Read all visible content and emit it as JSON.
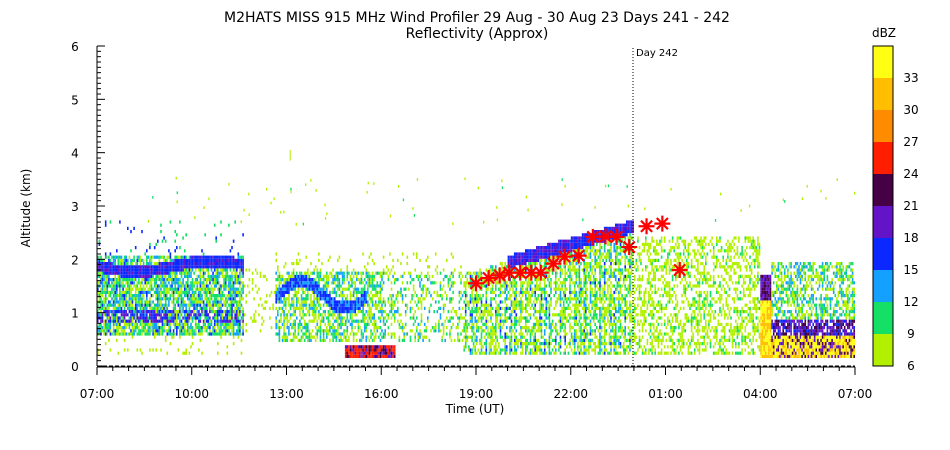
{
  "chart_data": {
    "type": "heatmap",
    "title": "M2HATS MISS 915 MHz Wind Profiler  29 Aug - 30 Aug 23 Days 241 - 242",
    "subtitle": "Reflectivity (Approx)",
    "xlabel": "Time (UT)",
    "ylabel": "Altitude (km)",
    "x_tick_labels": [
      "07:00",
      "10:00",
      "13:00",
      "16:00",
      "19:00",
      "22:00",
      "01:00",
      "04:00",
      "07:00"
    ],
    "x_ticks_hours": [
      0,
      3,
      6,
      9,
      12,
      15,
      18,
      21,
      24
    ],
    "xlim_hours_since_0700": [
      0,
      24
    ],
    "ylim": [
      0,
      6
    ],
    "y_tick_labels": [
      "0",
      "1",
      "2",
      "3",
      "4",
      "5",
      "6"
    ],
    "colorbar": {
      "title": "dBZ",
      "tick_labels": [
        "6",
        "9",
        "12",
        "15",
        "18",
        "21",
        "24",
        "27",
        "30",
        "33"
      ],
      "range": [
        6,
        36
      ],
      "colors": [
        "#b2f000",
        "#14e066",
        "#14a0ff",
        "#0a28ff",
        "#6414c8",
        "#460046",
        "#ff1e00",
        "#ff8c00",
        "#ffbe00",
        "#ffff14"
      ]
    },
    "annotation": {
      "label": "Day 242",
      "x_hours": 17
    },
    "markers": {
      "symbol": "asterisk",
      "color": "#ff0000",
      "points": [
        [
          12.0,
          1.55
        ],
        [
          12.4,
          1.65
        ],
        [
          12.75,
          1.7
        ],
        [
          13.05,
          1.75
        ],
        [
          13.4,
          1.75
        ],
        [
          13.75,
          1.75
        ],
        [
          14.05,
          1.75
        ],
        [
          14.45,
          1.92
        ],
        [
          14.8,
          2.05
        ],
        [
          15.25,
          2.07
        ],
        [
          15.7,
          2.42
        ],
        [
          16.1,
          2.43
        ],
        [
          16.45,
          2.42
        ],
        [
          16.85,
          2.23
        ],
        [
          17.4,
          2.62
        ],
        [
          17.9,
          2.67
        ],
        [
          18.45,
          1.8
        ]
      ]
    },
    "regions": [
      {
        "t": [
          0,
          4.5
        ],
        "z": [
          0.6,
          2.0
        ],
        "level": "mixed-12-21"
      },
      {
        "t": [
          5,
          11
        ],
        "z": [
          0.5,
          1.8
        ],
        "level": "mixed-6-18"
      },
      {
        "t": [
          7.8,
          9.4
        ],
        "z": [
          0,
          0.35
        ],
        "level": "24-30"
      },
      {
        "t": [
          11.8,
          17
        ],
        "z": [
          0.2,
          2.8
        ],
        "level": "mixed-6-21"
      },
      {
        "t": [
          17,
          22
        ],
        "z": [
          0.2,
          2.5
        ],
        "level": "6-12"
      },
      {
        "t": [
          21.0,
          21.3
        ],
        "z": [
          0,
          1.7
        ],
        "level": "24-36"
      },
      {
        "t": [
          21.3,
          24
        ],
        "z": [
          0,
          0.8
        ],
        "level": "21-36"
      }
    ],
    "grid": false,
    "legend": "colorbar-right"
  }
}
